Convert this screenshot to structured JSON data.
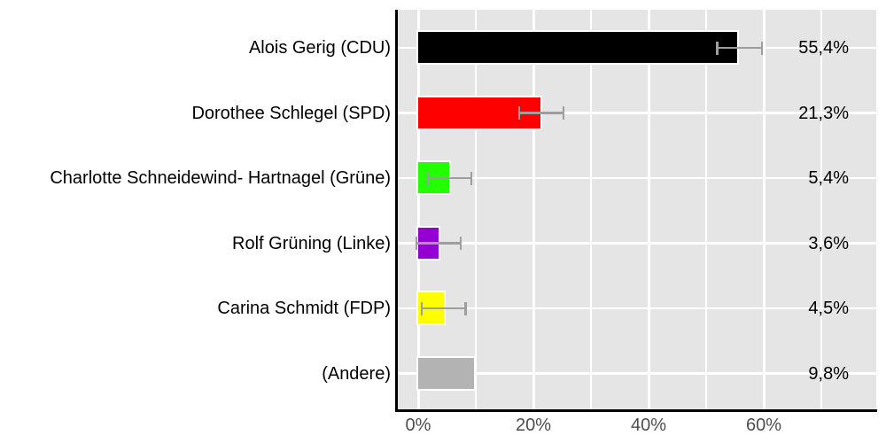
{
  "figure": {
    "background": "#FFFFFF"
  },
  "chart_data": {
    "type": "bar",
    "orientation": "horizontal",
    "title": "",
    "xlabel": "",
    "ylabel": "",
    "categories": [
      "Alois Gerig (CDU)",
      "Dorothee Schlegel (SPD)",
      "Charlotte Schneidewind- Hartnagel (Grüne)",
      "Rolf Grüning (Linke)",
      "Carina Schmidt (FDP)",
      "(Andere)"
    ],
    "values": [
      55.4,
      21.3,
      5.4,
      3.6,
      4.5,
      9.8
    ],
    "value_labels": [
      "55,4%",
      "21,3%",
      "5,4%",
      "3,6%",
      "4,5%",
      "9,8%"
    ],
    "bar_colors": [
      "#000000",
      "#FF0000",
      "#22FF00",
      "#9400D3",
      "#FFFF00",
      "#B3B3B3"
    ],
    "error_low": [
      51.9,
      17.5,
      1.5,
      -0.3,
      0.6,
      null
    ],
    "error_high": [
      59.7,
      25.2,
      9.2,
      7.4,
      8.2,
      null
    ],
    "x_ticks": [
      0,
      20,
      40,
      60
    ],
    "x_tick_labels": [
      "0%",
      "20%",
      "40%",
      "60%"
    ],
    "x_minor_ticks": [
      10,
      30,
      50,
      70
    ],
    "xlim": [
      -3.5,
      79.5
    ],
    "grid": "white major and minor vertical lines, white horizontal line per category",
    "legend": "none",
    "plot_background": "#E5E5E5",
    "gridline_color": "#FFFFFF",
    "errorbar_color": "#9E9E9E",
    "axis_line_color": "#000000",
    "bar_border_color": "#FFFFFF",
    "tick_label_color": "#4D4D4D",
    "category_label_color": "#000000",
    "value_label_color": "#000000"
  }
}
